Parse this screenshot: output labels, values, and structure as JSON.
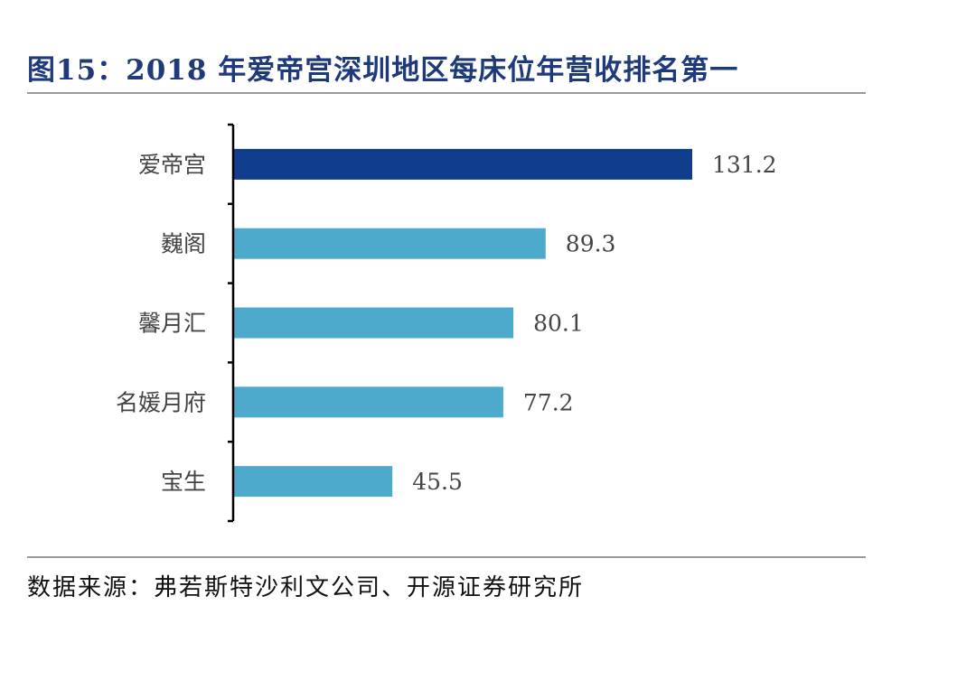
{
  "title": "图15：2018 年爱帝宫深圳地区每床位年营收排名第一",
  "source": "数据来源：弗若斯特沙利文公司、开源证券研究所",
  "chart_data": {
    "type": "bar",
    "orientation": "horizontal",
    "categories": [
      "爱帝宫",
      "巍阁",
      "馨月汇",
      "名媛月府",
      "宝生"
    ],
    "values": [
      131.2,
      89.3,
      80.1,
      77.2,
      45.5
    ],
    "value_labels": [
      "131.2",
      "89.3",
      "80.1",
      "77.2",
      "45.5"
    ],
    "xlim": [
      0,
      131.2
    ],
    "grid": false,
    "legend": "none",
    "colors": {
      "highlight": "#103e8c",
      "default": "#4eaacb",
      "axis": "#000000",
      "label": "#444444"
    }
  }
}
